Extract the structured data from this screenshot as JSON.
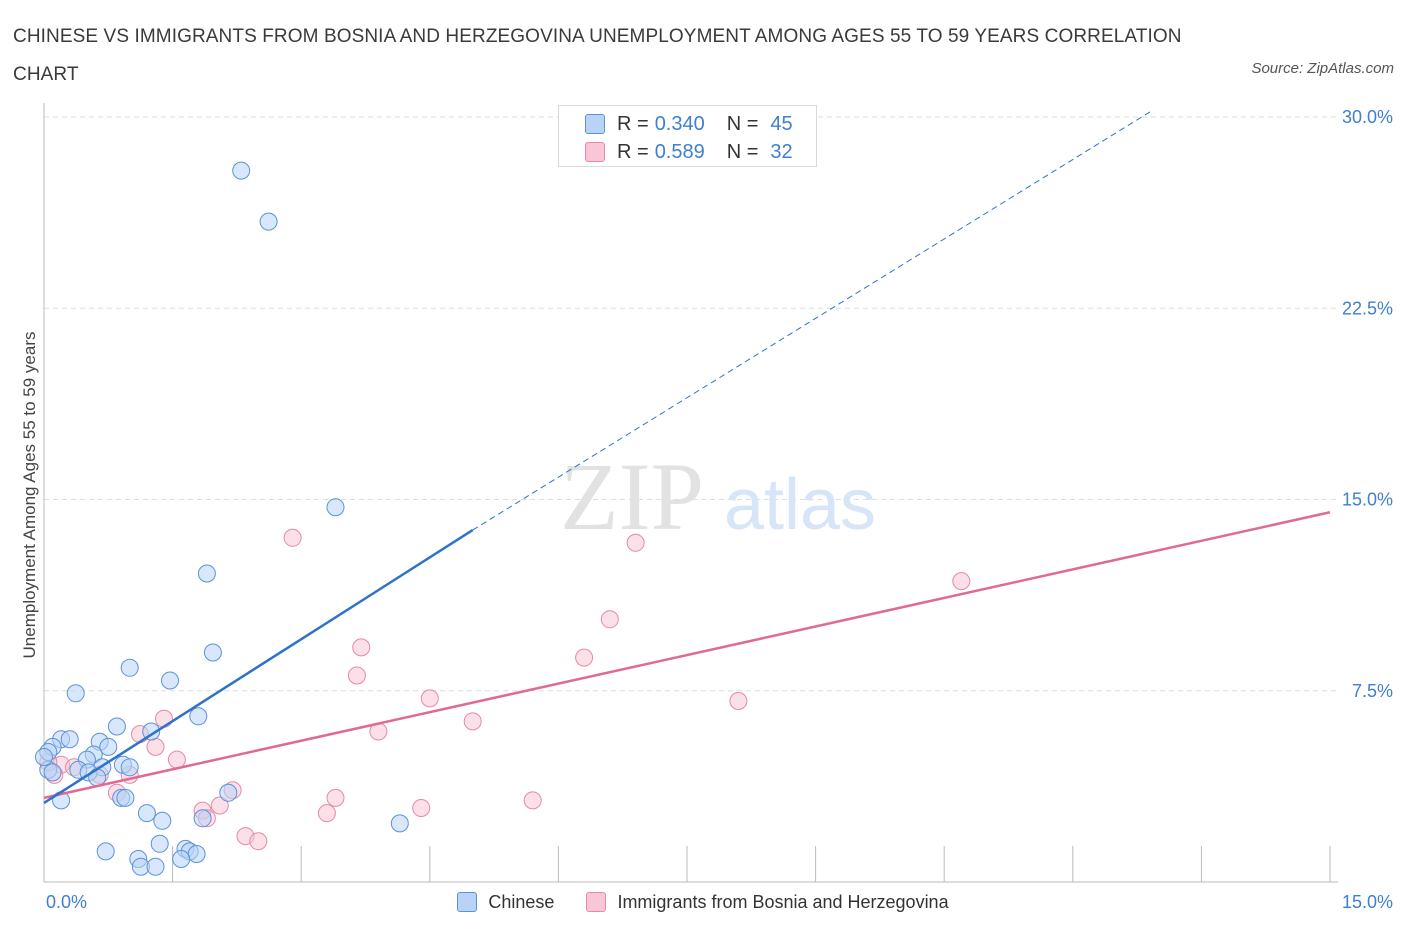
{
  "title": "CHINESE VS IMMIGRANTS FROM BOSNIA AND HERZEGOVINA UNEMPLOYMENT AMONG AGES 55 TO 59 YEARS CORRELATION CHART",
  "source": "Source: ZipAtlas.com",
  "watermark": {
    "zip": "ZIP",
    "atlas": "atlas"
  },
  "legend": {
    "r_label": "R =",
    "n_label": "N =",
    "series": [
      {
        "name": "Chinese",
        "r": "0.340",
        "n": "45"
      },
      {
        "name": "Immigrants from Bosnia and Herzegovina",
        "r": "0.589",
        "n": "32"
      }
    ]
  },
  "colors": {
    "blue_fill": "#b8d3f5",
    "blue_stroke": "#5b93d8",
    "blue_line": "#2e72cc",
    "pink_fill": "#f8c6d6",
    "pink_stroke": "#e58aa8",
    "pink_line": "#e06a93",
    "tick_text": "#3f7fd0",
    "grid": "#dddddd"
  },
  "chart_data": {
    "type": "scatter",
    "title": "CHINESE VS IMMIGRANTS FROM BOSNIA AND HERZEGOVINA UNEMPLOYMENT AMONG AGES 55 TO 59 YEARS CORRELATION CHART",
    "xlabel": "",
    "ylabel": "Unemployment Among Ages 55 to 59 years",
    "xlim": [
      0,
      15
    ],
    "ylim": [
      0,
      30
    ],
    "x_tick_labels": [
      "0.0%",
      "15.0%"
    ],
    "y_ticks": [
      7.5,
      15.0,
      22.5,
      30.0
    ],
    "y_tick_labels": [
      "7.5%",
      "15.0%",
      "22.5%",
      "30.0%"
    ],
    "grid": true,
    "series": [
      {
        "name": "Chinese",
        "r": 0.34,
        "n": 45,
        "trend": {
          "x": [
            0.0,
            5.0
          ],
          "y": [
            3.1,
            13.8
          ]
        },
        "trend_extension": {
          "x": [
            5.0,
            12.9
          ],
          "y": [
            13.8,
            30.2
          ]
        },
        "points": [
          [
            2.3,
            27.9
          ],
          [
            2.62,
            25.9
          ],
          [
            3.4,
            14.7
          ],
          [
            1.9,
            12.1
          ],
          [
            1.97,
            9.0
          ],
          [
            1.0,
            8.4
          ],
          [
            1.47,
            7.9
          ],
          [
            0.37,
            7.4
          ],
          [
            1.8,
            6.5
          ],
          [
            0.85,
            6.1
          ],
          [
            1.25,
            5.9
          ],
          [
            0.2,
            5.6
          ],
          [
            0.3,
            5.6
          ],
          [
            0.65,
            5.5
          ],
          [
            0.75,
            5.3
          ],
          [
            0.1,
            5.3
          ],
          [
            0.05,
            5.1
          ],
          [
            0.58,
            5.0
          ],
          [
            0.5,
            4.8
          ],
          [
            0.68,
            4.5
          ],
          [
            0.92,
            4.6
          ],
          [
            0.4,
            4.4
          ],
          [
            0.52,
            4.3
          ],
          [
            0.05,
            4.4
          ],
          [
            0.1,
            4.3
          ],
          [
            1.0,
            4.5
          ],
          [
            0.62,
            4.1
          ],
          [
            0.9,
            3.3
          ],
          [
            0.95,
            3.3
          ],
          [
            0.2,
            3.2
          ],
          [
            2.15,
            3.5
          ],
          [
            1.2,
            2.7
          ],
          [
            1.85,
            2.5
          ],
          [
            4.15,
            2.3
          ],
          [
            1.38,
            2.4
          ],
          [
            1.35,
            1.5
          ],
          [
            0.72,
            1.2
          ],
          [
            1.65,
            1.3
          ],
          [
            1.7,
            1.2
          ],
          [
            1.78,
            1.1
          ],
          [
            1.1,
            0.9
          ],
          [
            1.6,
            0.9
          ],
          [
            1.13,
            0.6
          ],
          [
            1.3,
            0.6
          ],
          [
            0.0,
            4.9
          ]
        ]
      },
      {
        "name": "Immigrants from Bosnia and Herzegovina",
        "r": 0.589,
        "n": 32,
        "trend": {
          "x": [
            0.0,
            15.0
          ],
          "y": [
            3.3,
            14.5
          ]
        },
        "points": [
          [
            2.9,
            13.5
          ],
          [
            6.9,
            13.3
          ],
          [
            10.7,
            11.8
          ],
          [
            6.6,
            10.3
          ],
          [
            3.7,
            9.2
          ],
          [
            6.3,
            8.8
          ],
          [
            3.65,
            8.1
          ],
          [
            4.5,
            7.2
          ],
          [
            8.1,
            7.1
          ],
          [
            1.4,
            6.4
          ],
          [
            5.0,
            6.3
          ],
          [
            1.12,
            5.8
          ],
          [
            3.9,
            5.9
          ],
          [
            1.3,
            5.3
          ],
          [
            1.55,
            4.8
          ],
          [
            0.2,
            4.6
          ],
          [
            0.35,
            4.5
          ],
          [
            0.65,
            4.2
          ],
          [
            1.0,
            4.2
          ],
          [
            0.12,
            4.2
          ],
          [
            0.85,
            3.5
          ],
          [
            2.2,
            3.6
          ],
          [
            3.4,
            3.3
          ],
          [
            5.7,
            3.2
          ],
          [
            2.05,
            3.0
          ],
          [
            4.4,
            2.9
          ],
          [
            1.85,
            2.8
          ],
          [
            3.3,
            2.7
          ],
          [
            1.9,
            2.5
          ],
          [
            2.35,
            1.8
          ],
          [
            2.5,
            1.6
          ],
          [
            0.05,
            4.7
          ]
        ]
      }
    ]
  }
}
